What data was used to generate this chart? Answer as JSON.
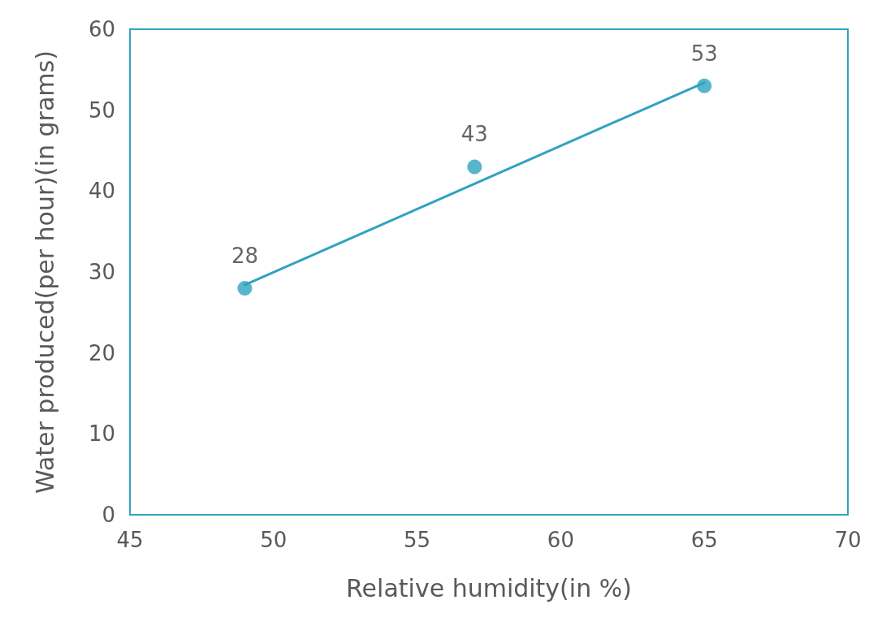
{
  "chart_data": {
    "type": "scatter",
    "xlabel": "Relative humidity(in %)",
    "ylabel": "Water produced(per hour)(in grams)",
    "x": [
      49,
      57,
      65
    ],
    "series": [
      {
        "color": "#2ea3c0",
        "values": [
          28,
          43,
          53
        ],
        "value_labels": [
          "28",
          "43",
          "53"
        ],
        "marker": "circle"
      },
      {
        "type": "line",
        "color": "#2ea3c0",
        "x": [
          49,
          65
        ],
        "values": [
          28.4,
          53.4
        ],
        "marker": "none",
        "line_style": "solid"
      }
    ],
    "grid": false,
    "xlim": [
      45,
      70
    ],
    "xticks": [
      45,
      50,
      55,
      60,
      65,
      70
    ],
    "ylim": [
      0,
      60
    ],
    "yticks": [
      0,
      10,
      20,
      30,
      40,
      50,
      60
    ]
  }
}
